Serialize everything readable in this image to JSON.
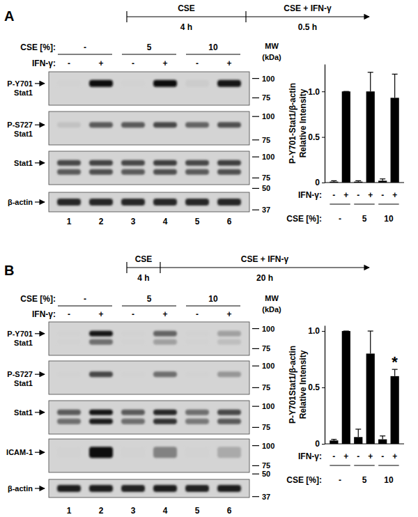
{
  "chart_data": [
    {
      "type": "bar",
      "y_label": [
        "P-Y701-Stat1/β-actin",
        "Relative Intensity"
      ],
      "categories": [
        "-",
        "+",
        "-",
        "+",
        "-",
        "+"
      ],
      "category_label": "IFN-γ:",
      "groups": {
        "label": "CSE [%]:",
        "names": [
          "-",
          "5",
          "10"
        ]
      },
      "values": [
        0.01,
        1.0,
        0.01,
        1.0,
        0.02,
        0.93
      ],
      "errors": [
        0.01,
        0,
        0.01,
        0.21,
        0.02,
        0.26
      ],
      "color": "#000000",
      "ylim": [
        0,
        1.3
      ],
      "yticks": [
        0,
        0.5,
        {
          "value": 1,
          "label": "1.0"
        }
      ]
    },
    {
      "type": "bar",
      "y_label": [
        "P-Y701Stat1/β-actin",
        "Relative Intensity"
      ],
      "categories": [
        "-",
        "+",
        "-",
        "+",
        "-",
        "+"
      ],
      "category_label": "IFN-γ:",
      "groups": {
        "label": "CSE [%]:",
        "names": [
          "-",
          "5",
          "10"
        ]
      },
      "values": [
        0.03,
        1.0,
        0.06,
        0.8,
        0.04,
        0.6
      ],
      "errors": [
        0.01,
        0,
        0.07,
        0.2,
        0.03,
        0.06
      ],
      "color": "#000000",
      "ylim": [
        0,
        1.05
      ],
      "yticks": [
        0,
        0.5,
        {
          "value": 1,
          "label": "1.0"
        }
      ],
      "annotations": [
        {
          "text": "*",
          "index": 5
        }
      ]
    }
  ],
  "figure": {
    "panels": [
      {
        "label": "A",
        "timeline": [
          {
            "text": "CSE",
            "duration": "4 h"
          },
          {
            "text": "CSE + IFN-γ",
            "duration": "0.5 h"
          }
        ],
        "cse_label": "CSE [%]:",
        "cse_groups": [
          "-",
          "5",
          "10"
        ],
        "ifn_label": "IFN-γ:",
        "ifn": [
          "-",
          "+",
          "-",
          "+",
          "-",
          "+"
        ],
        "mw_label": [
          "MW",
          "(kDa)"
        ],
        "lanes": [
          "1",
          "2",
          "3",
          "4",
          "5",
          "6"
        ],
        "blots": [
          {
            "label": [
              "P-Y701",
              "Stat1"
            ],
            "markers": [
              100,
              75
            ],
            "bands": [
              [
                0,
                1,
                0,
                1,
                0.03,
                0.95
              ]
            ]
          },
          {
            "label": [
              "P-S727",
              "Stat1"
            ],
            "markers": [
              100,
              75
            ],
            "bands": [
              [
                0.08,
                0.6,
                0.6,
                0.7,
                0.55,
                0.65
              ]
            ]
          },
          {
            "label": [
              "Stat1"
            ],
            "markers": [
              100,
              75
            ],
            "bands": [
              [
                0.7,
                0.72,
                0.7,
                0.75,
                0.7,
                0.75
              ],
              [
                0.6,
                0.65,
                0.6,
                0.65,
                0.6,
                0.65
              ]
            ]
          },
          {
            "label": [
              "β-actin"
            ],
            "markers": [
              50,
              37
            ],
            "bands": [
              [
                0.85,
                0.85,
                0.85,
                0.85,
                0.85,
                0.85
              ]
            ]
          }
        ]
      },
      {
        "label": "B",
        "timeline": [
          {
            "text": "CSE",
            "duration": "4 h"
          },
          {
            "text": "CSE + IFN-γ",
            "duration": "20 h"
          }
        ],
        "cse_label": "CSE [%]:",
        "cse_groups": [
          "-",
          "5",
          "10"
        ],
        "ifn_label": "IFN-γ:",
        "ifn": [
          "-",
          "+",
          "-",
          "+",
          "-",
          "+"
        ],
        "mw_label": [
          "MW",
          "(kDa)"
        ],
        "lanes": [
          "1",
          "2",
          "3",
          "4",
          "5",
          "6"
        ],
        "blots": [
          {
            "label": [
              "P-Y701",
              "Stat1"
            ],
            "markers": [
              100,
              75
            ],
            "bands": [
              [
                0,
                0.95,
                0,
                0.55,
                0,
                0.25
              ],
              [
                0,
                0.5,
                0,
                0.25,
                0,
                0.1
              ]
            ]
          },
          {
            "label": [
              "P-S727",
              "Stat1"
            ],
            "markers": [
              100,
              75
            ],
            "bands": [
              [
                0,
                0.7,
                0,
                0.5,
                0,
                0.3
              ]
            ]
          },
          {
            "label": [
              "Stat1"
            ],
            "markers": [
              100,
              75
            ],
            "bands": [
              [
                0.6,
                0.95,
                0.6,
                0.85,
                0.5,
                0.7
              ],
              [
                0.5,
                0.9,
                0.5,
                0.8,
                0.45,
                0.6
              ]
            ]
          },
          {
            "label": [
              "ICAM-1"
            ],
            "markers": [
              100,
              75
            ],
            "bands": [
              [
                0,
                1,
                0,
                0.4,
                0,
                0.2
              ]
            ]
          },
          {
            "label": [
              "β-actin"
            ],
            "markers": [
              50,
              37
            ],
            "bands": [
              [
                0.9,
                0.9,
                0.88,
                0.9,
                0.88,
                0.9
              ]
            ]
          }
        ]
      }
    ]
  }
}
